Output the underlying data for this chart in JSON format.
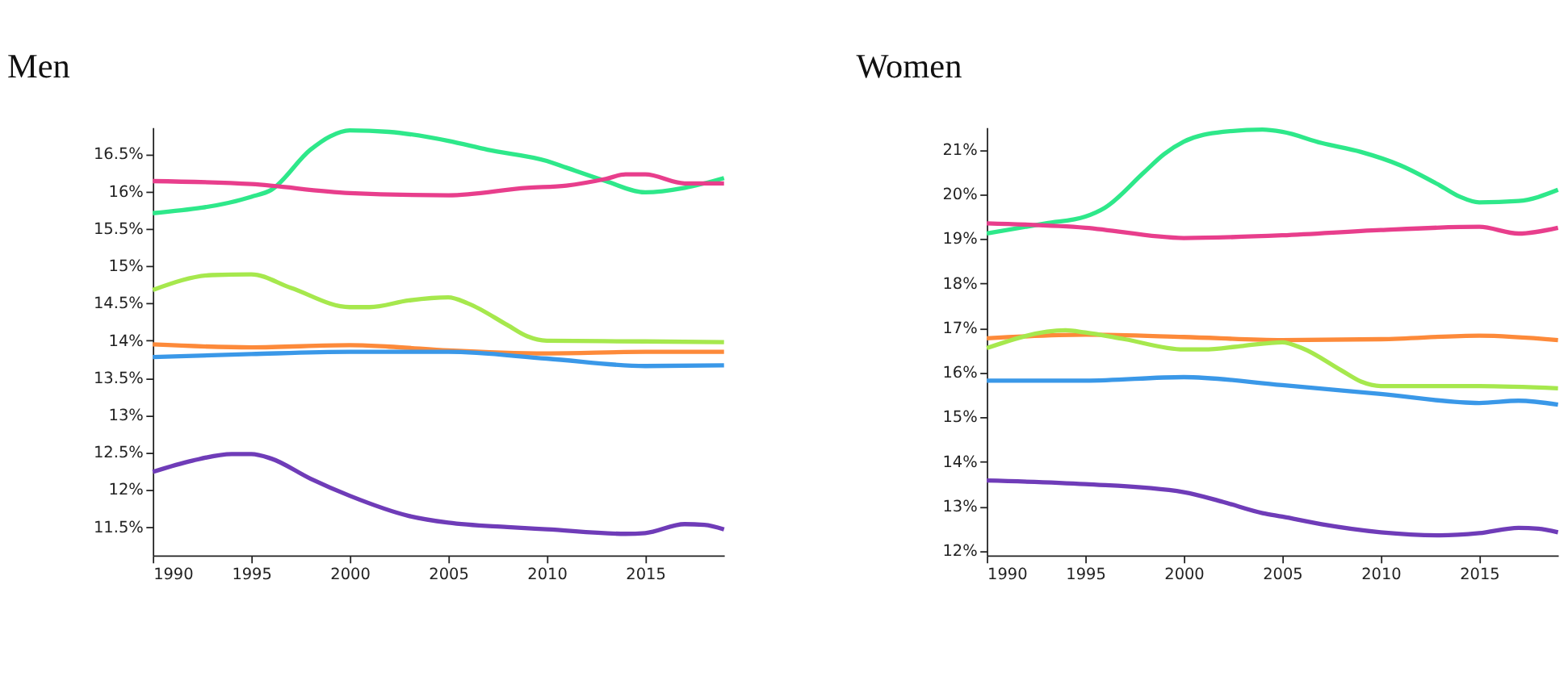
{
  "chart_data": [
    {
      "type": "line",
      "title": "Men",
      "xlim": [
        1990,
        2019
      ],
      "xticks": [
        1990,
        1995,
        2000,
        2005,
        2010,
        2015
      ],
      "ylim": [
        11.12,
        16.86
      ],
      "yticks": [
        {
          "value": 11.5,
          "label": "11.5%"
        },
        {
          "value": 12,
          "label": "12%"
        },
        {
          "value": 12.5,
          "label": "12.5%"
        },
        {
          "value": 13,
          "label": "13%"
        },
        {
          "value": 13.5,
          "label": "13.5%"
        },
        {
          "value": 14,
          "label": "14%"
        },
        {
          "value": 14.5,
          "label": "14.5%"
        },
        {
          "value": 15,
          "label": "15%"
        },
        {
          "value": 15.5,
          "label": "15.5%"
        },
        {
          "value": 16,
          "label": "16%"
        },
        {
          "value": 16.5,
          "label": "16.5%"
        }
      ],
      "grid": false,
      "legend": false,
      "line_style": "solid",
      "marker": "none",
      "series": [
        {
          "color": "#2ee88a",
          "x": [
            1990,
            1995,
            1996,
            1998,
            1999,
            2000,
            2002,
            2005,
            2007,
            2010,
            2011,
            2013,
            2015,
            2017,
            2019
          ],
          "values": [
            15.71,
            15.93,
            16.02,
            16.56,
            16.74,
            16.82,
            16.8,
            16.68,
            16.56,
            16.41,
            16.32,
            16.14,
            15.99,
            16.05,
            16.18
          ]
        },
        {
          "color": "#e83e8c",
          "x": [
            1990,
            1995,
            2000,
            2005,
            2009,
            2011,
            2013,
            2014,
            2015,
            2017,
            2019
          ],
          "values": [
            16.14,
            16.1,
            15.98,
            15.95,
            16.05,
            16.08,
            16.17,
            16.23,
            16.23,
            16.11,
            16.11
          ]
        },
        {
          "color": "#a6e84d",
          "x": [
            1990,
            1993,
            1995,
            1997,
            2000,
            2001,
            2003,
            2005,
            2006,
            2008,
            2009,
            2010,
            2015,
            2019
          ],
          "values": [
            14.68,
            14.88,
            14.89,
            14.71,
            14.45,
            14.45,
            14.54,
            14.58,
            14.5,
            14.21,
            14.06,
            14.0,
            13.99,
            13.98
          ]
        },
        {
          "color": "#fd8a3a",
          "x": [
            1990,
            1995,
            2000,
            2002,
            2005,
            2010,
            2015,
            2019
          ],
          "values": [
            13.95,
            13.91,
            13.94,
            13.92,
            13.87,
            13.83,
            13.85,
            13.85
          ]
        },
        {
          "color": "#3a98e8",
          "x": [
            1990,
            1995,
            2000,
            2005,
            2010,
            2015,
            2019
          ],
          "values": [
            13.78,
            13.82,
            13.85,
            13.85,
            13.76,
            13.66,
            13.67
          ]
        },
        {
          "color": "#6f3cb8",
          "x": [
            1990,
            1992,
            1994,
            1995,
            1996,
            1998,
            2000,
            2003,
            2005,
            2008,
            2010,
            2014,
            2015,
            2017,
            2018,
            2019
          ],
          "values": [
            12.24,
            12.39,
            12.48,
            12.48,
            12.42,
            12.15,
            11.92,
            11.65,
            11.56,
            11.5,
            11.47,
            11.41,
            11.42,
            11.54,
            11.53,
            11.47
          ]
        }
      ]
    },
    {
      "type": "line",
      "title": "Women",
      "xlim": [
        1990,
        2019
      ],
      "xticks": [
        1990,
        1995,
        2000,
        2005,
        2010,
        2015
      ],
      "ylim": [
        11.9,
        21.5
      ],
      "yticks": [
        {
          "value": 12,
          "label": "12%"
        },
        {
          "value": 13,
          "label": "13%"
        },
        {
          "value": 14,
          "label": "14%"
        },
        {
          "value": 15,
          "label": "15%"
        },
        {
          "value": 16,
          "label": "16%"
        },
        {
          "value": 17,
          "label": "17%"
        },
        {
          "value": 18,
          "label": "18%"
        },
        {
          "value": 19,
          "label": "19%"
        },
        {
          "value": 20,
          "label": "20%"
        },
        {
          "value": 21,
          "label": "21%"
        }
      ],
      "grid": false,
      "legend": false,
      "line_style": "solid",
      "marker": "none",
      "series": [
        {
          "color": "#2ee88a",
          "x": [
            1990,
            1993,
            1995,
            1996,
            1998,
            1999,
            2000,
            2002,
            2004,
            2005,
            2007,
            2009,
            2011,
            2013,
            2014,
            2015,
            2017,
            2019
          ],
          "values": [
            19.12,
            19.35,
            19.5,
            19.7,
            20.5,
            20.9,
            21.18,
            21.4,
            21.45,
            21.4,
            21.15,
            20.95,
            20.65,
            20.2,
            19.95,
            19.82,
            19.85,
            20.1
          ]
        },
        {
          "color": "#e83e8c",
          "x": [
            1990,
            1995,
            2000,
            2005,
            2010,
            2015,
            2017,
            2019
          ],
          "values": [
            19.35,
            19.25,
            19.02,
            19.08,
            19.2,
            19.27,
            19.12,
            19.25
          ]
        },
        {
          "color": "#fd8a3a",
          "x": [
            1990,
            1995,
            2000,
            2005,
            2010,
            2015,
            2019
          ],
          "values": [
            16.77,
            16.85,
            16.8,
            16.73,
            16.75,
            16.83,
            16.73
          ]
        },
        {
          "color": "#a6e84d",
          "x": [
            1990,
            1994,
            1995,
            1997,
            2000,
            2001,
            2003,
            2005,
            2006,
            2008,
            2009,
            2010,
            2015,
            2019
          ],
          "values": [
            16.55,
            16.95,
            16.9,
            16.75,
            16.52,
            16.52,
            16.6,
            16.68,
            16.55,
            16.05,
            15.8,
            15.7,
            15.7,
            15.65
          ]
        },
        {
          "color": "#3a98e8",
          "x": [
            1990,
            1995,
            2000,
            2005,
            2010,
            2015,
            2017,
            2019
          ],
          "values": [
            15.82,
            15.82,
            15.9,
            15.72,
            15.52,
            15.32,
            15.37,
            15.28
          ]
        },
        {
          "color": "#6f3cb8",
          "x": [
            1990,
            1995,
            2000,
            2002,
            2004,
            2005,
            2007,
            2010,
            2013,
            2015,
            2017,
            2018,
            2019
          ],
          "values": [
            13.58,
            13.5,
            13.32,
            13.1,
            12.85,
            12.77,
            12.6,
            12.42,
            12.35,
            12.4,
            12.52,
            12.5,
            12.42
          ]
        }
      ]
    }
  ]
}
